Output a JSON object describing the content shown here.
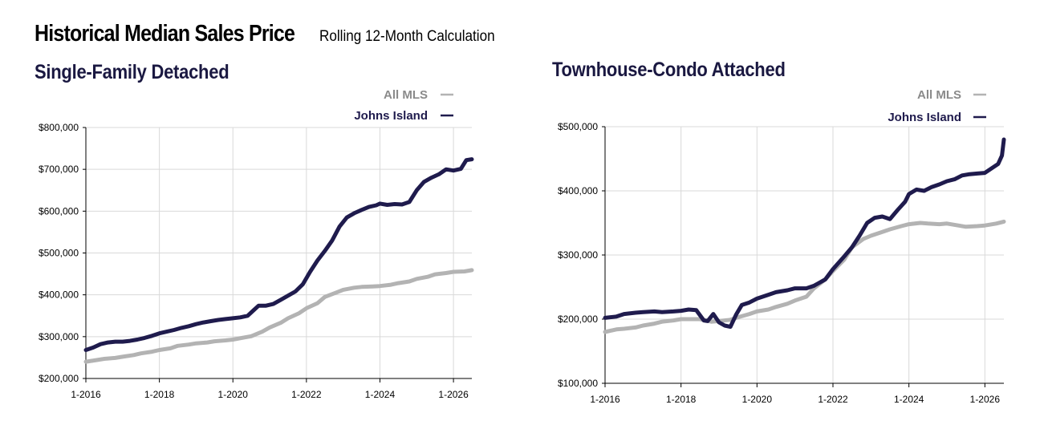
{
  "header": {
    "title": "Historical Median Sales Price",
    "subtitle": "Rolling 12-Month Calculation"
  },
  "colors": {
    "all_mls": "#b3b3b3",
    "johns_island": "#1f1b4d",
    "grid": "#d9d9d9",
    "title": "#1a1841"
  },
  "chart_data": [
    {
      "type": "line",
      "title": "Single-Family Detached",
      "xlabel": "",
      "ylabel": "",
      "xlim": [
        2016.0,
        2026.5
      ],
      "ylim": [
        200000,
        800000
      ],
      "x_ticks": [
        {
          "value": 2016,
          "label": "1-2016"
        },
        {
          "value": 2018,
          "label": "1-2018"
        },
        {
          "value": 2020,
          "label": "1-2020"
        },
        {
          "value": 2022,
          "label": "1-2022"
        },
        {
          "value": 2024,
          "label": "1-2024"
        },
        {
          "value": 2026,
          "label": "1-2026"
        }
      ],
      "y_ticks": [
        {
          "value": 200000,
          "label": "$200,000"
        },
        {
          "value": 300000,
          "label": "$300,000"
        },
        {
          "value": 400000,
          "label": "$400,000"
        },
        {
          "value": 500000,
          "label": "$500,000"
        },
        {
          "value": 600000,
          "label": "$600,000"
        },
        {
          "value": 700000,
          "label": "$700,000"
        },
        {
          "value": 800000,
          "label": "$800,000"
        }
      ],
      "grid": true,
      "legend_position": "top-right",
      "series": [
        {
          "name": "All MLS",
          "color": "#b3b3b3",
          "x": [
            2016.0,
            2016.3,
            2016.5,
            2016.8,
            2017.0,
            2017.3,
            2017.5,
            2017.8,
            2018.0,
            2018.3,
            2018.5,
            2018.8,
            2019.0,
            2019.3,
            2019.5,
            2019.8,
            2020.0,
            2020.3,
            2020.5,
            2020.8,
            2021.0,
            2021.3,
            2021.5,
            2021.8,
            2022.0,
            2022.3,
            2022.5,
            2022.8,
            2023.0,
            2023.3,
            2023.5,
            2023.8,
            2024.0,
            2024.3,
            2024.5,
            2024.8,
            2025.0,
            2025.3,
            2025.5,
            2025.8,
            2026.0,
            2026.3,
            2026.5
          ],
          "y": [
            240000,
            244000,
            247000,
            249000,
            252000,
            256000,
            260000,
            264000,
            268000,
            272000,
            278000,
            281000,
            284000,
            286000,
            289000,
            291000,
            293000,
            298000,
            301000,
            312000,
            322000,
            333000,
            344000,
            356000,
            368000,
            380000,
            395000,
            405000,
            412000,
            417000,
            419000,
            420000,
            421000,
            424000,
            428000,
            432000,
            438000,
            443000,
            449000,
            452000,
            455000,
            456000,
            459000
          ]
        },
        {
          "name": "Johns Island",
          "color": "#1f1b4d",
          "x": [
            2016.0,
            2016.2,
            2016.4,
            2016.6,
            2016.8,
            2017.0,
            2017.2,
            2017.4,
            2017.6,
            2017.8,
            2018.0,
            2018.2,
            2018.4,
            2018.6,
            2018.8,
            2019.0,
            2019.2,
            2019.4,
            2019.6,
            2019.8,
            2020.0,
            2020.2,
            2020.4,
            2020.55,
            2020.7,
            2020.9,
            2021.1,
            2021.3,
            2021.5,
            2021.7,
            2021.9,
            2022.1,
            2022.3,
            2022.5,
            2022.7,
            2022.9,
            2023.1,
            2023.3,
            2023.5,
            2023.7,
            2023.9,
            2024.0,
            2024.2,
            2024.4,
            2024.6,
            2024.8,
            2025.0,
            2025.2,
            2025.4,
            2025.6,
            2025.8,
            2026.0,
            2026.2,
            2026.35,
            2026.5
          ],
          "y": [
            268000,
            274000,
            282000,
            286000,
            288000,
            288000,
            290000,
            293000,
            297000,
            302000,
            308000,
            312000,
            316000,
            321000,
            325000,
            330000,
            334000,
            337000,
            340000,
            342000,
            344000,
            346000,
            350000,
            362000,
            374000,
            374000,
            378000,
            388000,
            398000,
            408000,
            425000,
            455000,
            482000,
            505000,
            530000,
            563000,
            585000,
            595000,
            603000,
            610000,
            614000,
            618000,
            615000,
            617000,
            616000,
            622000,
            650000,
            670000,
            680000,
            688000,
            700000,
            697000,
            701000,
            722000,
            724000
          ]
        }
      ]
    },
    {
      "type": "line",
      "title": "Townhouse-Condo Attached",
      "xlabel": "",
      "ylabel": "",
      "xlim": [
        2016.0,
        2026.5
      ],
      "ylim": [
        100000,
        500000
      ],
      "x_ticks": [
        {
          "value": 2016,
          "label": "1-2016"
        },
        {
          "value": 2018,
          "label": "1-2018"
        },
        {
          "value": 2020,
          "label": "1-2020"
        },
        {
          "value": 2022,
          "label": "1-2022"
        },
        {
          "value": 2024,
          "label": "1-2024"
        },
        {
          "value": 2026,
          "label": "1-2026"
        }
      ],
      "y_ticks": [
        {
          "value": 100000,
          "label": "$100,000"
        },
        {
          "value": 200000,
          "label": "$200,000"
        },
        {
          "value": 300000,
          "label": "$300,000"
        },
        {
          "value": 400000,
          "label": "$400,000"
        },
        {
          "value": 500000,
          "label": "$500,000"
        }
      ],
      "grid": true,
      "legend_position": "top-right",
      "series": [
        {
          "name": "All MLS",
          "color": "#b3b3b3",
          "x": [
            2016.0,
            2016.3,
            2016.5,
            2016.8,
            2017.0,
            2017.3,
            2017.5,
            2017.8,
            2018.0,
            2018.3,
            2018.5,
            2018.8,
            2019.0,
            2019.3,
            2019.5,
            2019.8,
            2020.0,
            2020.3,
            2020.5,
            2020.8,
            2021.0,
            2021.3,
            2021.5,
            2021.8,
            2022.0,
            2022.3,
            2022.5,
            2022.8,
            2023.0,
            2023.3,
            2023.5,
            2023.8,
            2024.0,
            2024.3,
            2024.5,
            2024.8,
            2025.0,
            2025.3,
            2025.5,
            2025.8,
            2026.0,
            2026.3,
            2026.5
          ],
          "y": [
            180000,
            184000,
            185000,
            187000,
            190000,
            193000,
            196000,
            198000,
            200000,
            200000,
            200000,
            196000,
            197000,
            199000,
            203000,
            208000,
            212000,
            215000,
            219000,
            224000,
            229000,
            235000,
            248000,
            262000,
            275000,
            293000,
            312000,
            325000,
            330000,
            336000,
            340000,
            345000,
            348000,
            350000,
            349000,
            348000,
            349000,
            346000,
            344000,
            345000,
            346000,
            349000,
            352000
          ]
        },
        {
          "name": "Johns Island",
          "color": "#1f1b4d",
          "x": [
            2016.0,
            2016.3,
            2016.5,
            2016.8,
            2017.0,
            2017.3,
            2017.5,
            2017.8,
            2018.0,
            2018.2,
            2018.4,
            2018.6,
            2018.7,
            2018.85,
            2019.0,
            2019.15,
            2019.3,
            2019.45,
            2019.6,
            2019.8,
            2020.0,
            2020.3,
            2020.5,
            2020.8,
            2021.0,
            2021.3,
            2021.5,
            2021.8,
            2022.0,
            2022.3,
            2022.5,
            2022.7,
            2022.9,
            2023.1,
            2023.3,
            2023.5,
            2023.7,
            2023.9,
            2024.0,
            2024.2,
            2024.4,
            2024.6,
            2024.8,
            2025.0,
            2025.2,
            2025.4,
            2025.6,
            2025.8,
            2026.0,
            2026.2,
            2026.35,
            2026.45,
            2026.5
          ],
          "y": [
            202000,
            204000,
            208000,
            210000,
            211000,
            212000,
            211000,
            212000,
            213000,
            215000,
            214000,
            198000,
            197000,
            208000,
            195000,
            190000,
            188000,
            207000,
            222000,
            226000,
            232000,
            238000,
            242000,
            245000,
            248000,
            248000,
            252000,
            262000,
            278000,
            298000,
            312000,
            330000,
            350000,
            358000,
            360000,
            356000,
            370000,
            383000,
            395000,
            402000,
            400000,
            406000,
            410000,
            415000,
            418000,
            424000,
            426000,
            427000,
            428000,
            436000,
            442000,
            455000,
            480000
          ]
        }
      ]
    }
  ]
}
